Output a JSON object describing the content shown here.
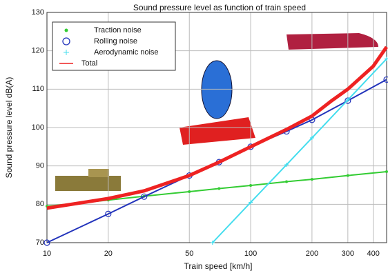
{
  "chart_data": {
    "type": "line",
    "title": "Sound pressure level as function of train speed",
    "x_label": "Train speed [km/h]",
    "y_label": "Sound pressure level dB(A)",
    "x_scale": "log",
    "xlim": [
      10,
      465
    ],
    "xticks": [
      10,
      20,
      50,
      100,
      200,
      300,
      400
    ],
    "ylim": [
      70,
      130
    ],
    "yticks": [
      70,
      80,
      90,
      100,
      110,
      120,
      130
    ],
    "grid": true,
    "legend": "upper left",
    "series": [
      {
        "name": "Traction noise",
        "color": "#33cc33",
        "marker": "dot",
        "x": [
          10,
          20,
          30,
          50,
          70,
          100,
          150,
          200,
          300,
          465
        ],
        "values": [
          79.5,
          81.1,
          82.1,
          83.3,
          84.1,
          84.9,
          85.9,
          86.5,
          87.5,
          88.5
        ]
      },
      {
        "name": "Rolling noise",
        "color": "#2233bb",
        "marker": "circle",
        "x": [
          10,
          20,
          30,
          50,
          70,
          100,
          150,
          200,
          300,
          465
        ],
        "values": [
          70,
          77.5,
          82,
          87.5,
          91,
          95,
          99,
          102,
          107,
          112.5
        ]
      },
      {
        "name": "Aerodynamic noise",
        "color": "#44ddee",
        "marker": "plus",
        "x": [
          65,
          100,
          150,
          200,
          300,
          465
        ],
        "values": [
          70,
          80.5,
          90.3,
          97.3,
          107.2,
          117.9
        ]
      },
      {
        "name": "Total",
        "color": "#ee2222",
        "marker": "none",
        "x": [
          10,
          20,
          30,
          50,
          70,
          100,
          150,
          200,
          250,
          300,
          400,
          465
        ],
        "values": [
          79,
          81.5,
          83.5,
          87.5,
          91,
          95,
          99.5,
          103,
          107,
          110,
          116,
          121
        ]
      }
    ]
  }
}
